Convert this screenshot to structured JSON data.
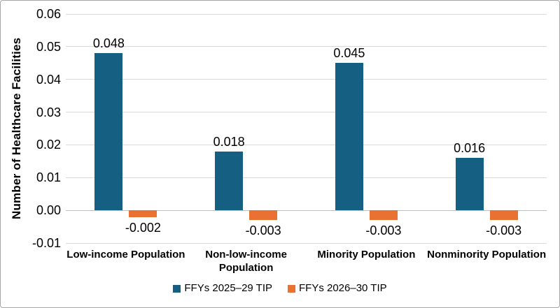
{
  "chart_data": {
    "type": "bar",
    "title": "",
    "xlabel": "",
    "ylabel": "Number of Healthcare Facilities",
    "categories": [
      "Low-income Population",
      "Non-low-income Population",
      "Minority Population",
      "Nonminority Population"
    ],
    "series": [
      {
        "name": "FFYs 2025–29 TIP",
        "color": "#156082",
        "values": [
          0.048,
          0.018,
          0.045,
          0.016
        ]
      },
      {
        "name": "FFYs 2026–30 TIP",
        "color": "#E97132",
        "values": [
          -0.002,
          -0.003,
          -0.003,
          -0.003
        ]
      }
    ],
    "data_labels": [
      [
        "0.048",
        "0.018",
        "0.045",
        "0.016"
      ],
      [
        "-0.002",
        "-0.003",
        "-0.003",
        "-0.003"
      ]
    ],
    "ylim": [
      -0.01,
      0.06
    ],
    "ytick_step": 0.01,
    "yticks": [
      "0.06",
      "0.05",
      "0.04",
      "0.03",
      "0.02",
      "0.01",
      "0.00",
      "-0.01"
    ],
    "grid": true,
    "legend_position": "bottom",
    "colors": {
      "gridline": "#D9D9D9",
      "zero_line": "#BFBFBF",
      "text": "#000000",
      "frame_border": "#A6A6A6",
      "background": "#FFFFFF"
    }
  }
}
